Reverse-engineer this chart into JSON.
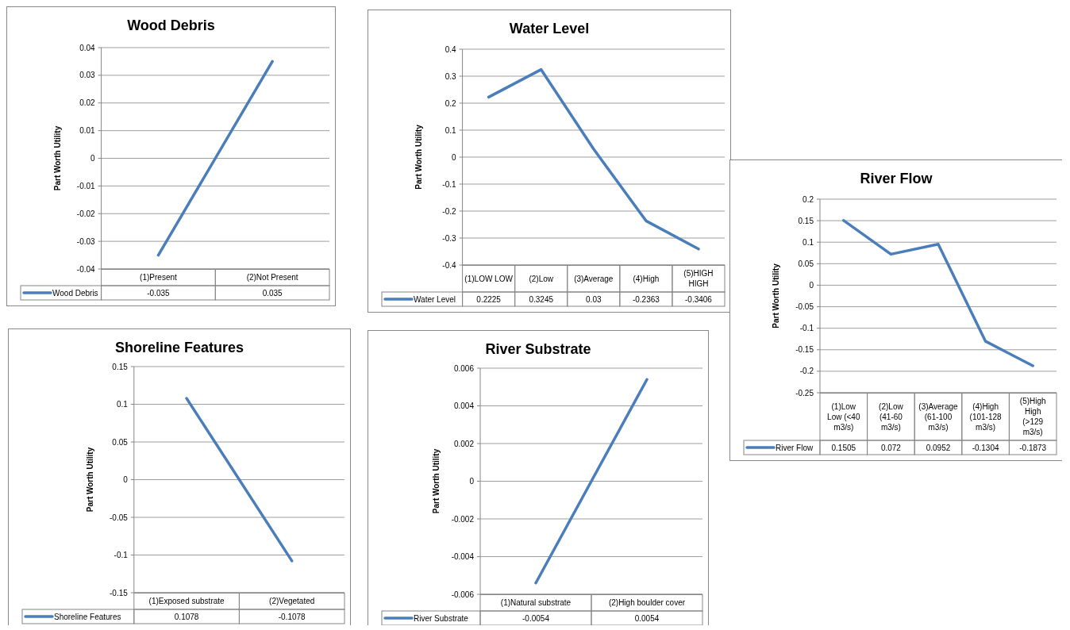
{
  "chart_data": [
    {
      "type": "line",
      "title": "Wood Debris",
      "ylabel": "Part Worth Utility",
      "categories": [
        "(1)Present",
        "(2)Not Present"
      ],
      "series": [
        {
          "name": "Wood Debris",
          "color": "#4a7ebb",
          "values": [
            -0.035,
            0.035
          ]
        }
      ],
      "ylim": [
        -0.04,
        0.04
      ],
      "yticks": [
        -0.04,
        -0.03,
        -0.02,
        -0.01,
        0,
        0.01,
        0.02,
        0.03,
        0.04
      ],
      "grid": "y",
      "legend": "bottom",
      "data_labels": true,
      "marker": "none"
    },
    {
      "type": "line",
      "title": "Water Level",
      "ylabel": "Part Worth Utility",
      "categories": [
        "(1)LOW LOW",
        "(2)Low",
        "(3)Average",
        "(4)High",
        "(5)HIGH HIGH"
      ],
      "series": [
        {
          "name": "Water Level",
          "color": "#4a7ebb",
          "values": [
            0.2225,
            0.3245,
            0.03,
            -0.2363,
            -0.3406
          ]
        }
      ],
      "ylim": [
        -0.4,
        0.4
      ],
      "yticks": [
        -0.4,
        -0.3,
        -0.2,
        -0.1,
        0,
        0.1,
        0.2,
        0.3,
        0.4
      ],
      "grid": "y",
      "legend": "bottom",
      "data_labels": true,
      "marker": "none"
    },
    {
      "type": "line",
      "title": "River Flow",
      "ylabel": "Part Worth Utility",
      "categories": [
        "(1)Low Low (<40 m3/s)",
        "(2)Low (41-60 m3/s)",
        "(3)Average (61-100 m3/s)",
        "(4)High (101-128 m3/s)",
        "(5)High High (>129 m3/s)"
      ],
      "series": [
        {
          "name": "River Flow",
          "color": "#4a7ebb",
          "values": [
            0.1505,
            0.072,
            0.0952,
            -0.1304,
            -0.1873
          ]
        }
      ],
      "ylim": [
        -0.25,
        0.2
      ],
      "yticks": [
        -0.25,
        -0.2,
        -0.15,
        -0.1,
        -0.05,
        0,
        0.05,
        0.1,
        0.15,
        0.2
      ],
      "grid": "y",
      "legend": "bottom",
      "data_labels": true,
      "marker": "none"
    },
    {
      "type": "line",
      "title": "Shoreline Features",
      "ylabel": "Part Worth Utility",
      "categories": [
        "(1)Exposed substrate",
        "(2)Vegetated"
      ],
      "series": [
        {
          "name": "Shoreline Features",
          "color": "#4a7ebb",
          "values": [
            0.1078,
            -0.1078
          ]
        }
      ],
      "ylim": [
        -0.15,
        0.15
      ],
      "yticks": [
        -0.15,
        -0.1,
        -0.05,
        0,
        0.05,
        0.1,
        0.15
      ],
      "grid": "y",
      "legend": "bottom",
      "data_labels": true,
      "marker": "none"
    },
    {
      "type": "line",
      "title": "River Substrate",
      "ylabel": "Part Worth Utility",
      "categories": [
        "(1)Natural substrate",
        "(2)High boulder cover"
      ],
      "series": [
        {
          "name": "River Substrate",
          "color": "#4a7ebb",
          "values": [
            -0.0054,
            0.0054
          ]
        }
      ],
      "ylim": [
        -0.006,
        0.006
      ],
      "yticks": [
        -0.006,
        -0.004,
        -0.002,
        0,
        0.002,
        0.004,
        0.006
      ],
      "grid": "y",
      "legend": "bottom",
      "data_labels": true,
      "marker": "none"
    }
  ]
}
